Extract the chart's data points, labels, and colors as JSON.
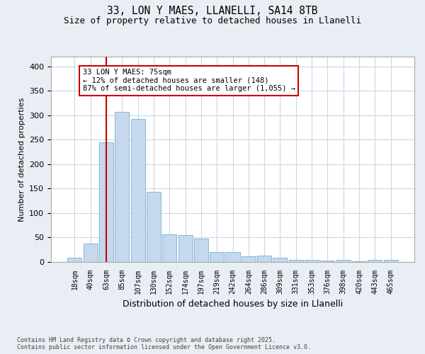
{
  "title1": "33, LON Y MAES, LLANELLI, SA14 8TB",
  "title2": "Size of property relative to detached houses in Llanelli",
  "xlabel": "Distribution of detached houses by size in Llanelli",
  "ylabel": "Number of detached properties",
  "footnote": "Contains HM Land Registry data © Crown copyright and database right 2025.\nContains public sector information licensed under the Open Government Licence v3.0.",
  "bin_labels": [
    "18sqm",
    "40sqm",
    "63sqm",
    "85sqm",
    "107sqm",
    "130sqm",
    "152sqm",
    "174sqm",
    "197sqm",
    "219sqm",
    "242sqm",
    "264sqm",
    "286sqm",
    "309sqm",
    "331sqm",
    "353sqm",
    "376sqm",
    "398sqm",
    "420sqm",
    "443sqm",
    "465sqm"
  ],
  "bar_values": [
    9,
    38,
    245,
    307,
    293,
    143,
    56,
    55,
    48,
    20,
    20,
    12,
    13,
    8,
    4,
    5,
    3,
    4,
    1,
    4,
    4
  ],
  "bar_color": "#c5d8ed",
  "bar_edge_color": "#7aaed1",
  "marker_bin_index": 2,
  "marker_label": "33 LON Y MAES: 75sqm",
  "annotation_line1": "← 12% of detached houses are smaller (148)",
  "annotation_line2": "87% of semi-detached houses are larger (1,055) →",
  "marker_color": "#cc0000",
  "ylim": [
    0,
    420
  ],
  "yticks": [
    0,
    50,
    100,
    150,
    200,
    250,
    300,
    350,
    400
  ],
  "background_color": "#e8eef4",
  "plot_background": "#ffffff",
  "grid_color": "#c8d8e8"
}
